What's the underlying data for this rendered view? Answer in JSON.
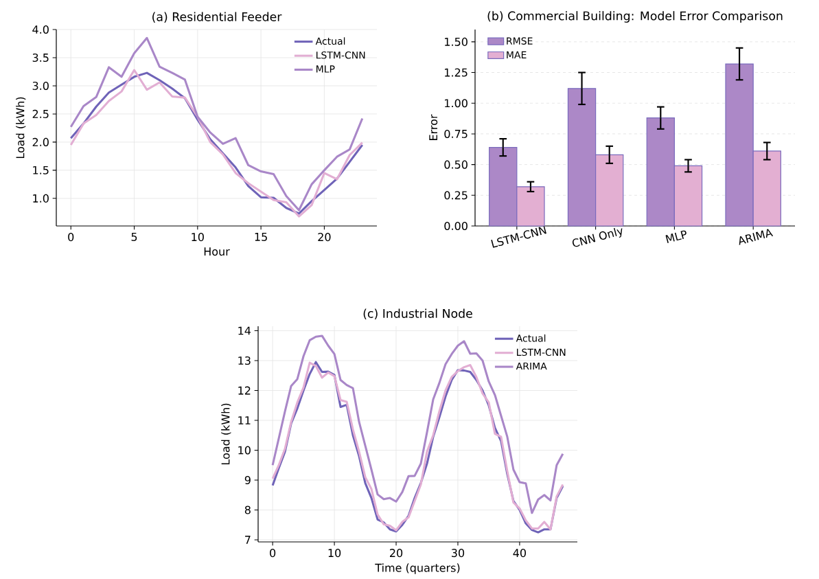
{
  "chart_data": [
    {
      "type": "line",
      "title": "(a) Residential Feeder",
      "xlabel": "Hour",
      "ylabel": "Load (kWh)",
      "x": [
        0,
        1,
        2,
        3,
        4,
        5,
        6,
        7,
        8,
        9,
        10,
        11,
        12,
        13,
        14,
        15,
        16,
        17,
        18,
        19,
        20,
        21,
        22,
        23
      ],
      "series": [
        {
          "name": "Actual",
          "color": "#6f63b8",
          "values": [
            2.07,
            2.33,
            2.63,
            2.88,
            3.02,
            3.16,
            3.23,
            3.1,
            2.95,
            2.78,
            2.4,
            2.05,
            1.8,
            1.55,
            1.22,
            1.02,
            1.01,
            0.83,
            0.73,
            0.95,
            1.15,
            1.35,
            1.65,
            1.95
          ]
        },
        {
          "name": "LSTM-CNN",
          "color": "#e2aed3",
          "values": [
            1.95,
            2.33,
            2.48,
            2.73,
            2.9,
            3.28,
            2.93,
            3.06,
            2.81,
            2.79,
            2.45,
            2.0,
            1.78,
            1.45,
            1.27,
            1.12,
            0.97,
            0.93,
            0.68,
            0.88,
            1.45,
            1.34,
            1.77,
            1.99
          ]
        },
        {
          "name": "MLP",
          "color": "#a987c8",
          "values": [
            2.27,
            2.64,
            2.8,
            3.33,
            3.16,
            3.58,
            3.85,
            3.34,
            3.23,
            3.11,
            2.45,
            2.17,
            1.97,
            2.07,
            1.59,
            1.48,
            1.43,
            1.04,
            0.79,
            1.25,
            1.5,
            1.74,
            1.87,
            2.42
          ]
        }
      ],
      "xlim": [
        -1.15,
        24.15
      ],
      "ylim": [
        0.51,
        4.0
      ],
      "xticks": [
        0,
        5,
        10,
        15,
        20
      ],
      "yticks": [
        {
          "value": 1.0,
          "label": "1.0"
        },
        {
          "value": 1.5,
          "label": "1.5"
        },
        {
          "value": 2.0,
          "label": "2.0"
        },
        {
          "value": 2.5,
          "label": "2.5"
        },
        {
          "value": 3.0,
          "label": "3.0"
        },
        {
          "value": 3.5,
          "label": "3.5"
        },
        {
          "value": 4.0,
          "label": "4.0"
        }
      ],
      "grid": true,
      "legend": "top right"
    },
    {
      "type": "bar",
      "title": "(b) Commercial Building: Model Error Comparison",
      "ylabel": "Error",
      "categories": [
        "LSTM-CNN",
        "CNN Only",
        "MLP",
        "ARIMA"
      ],
      "series": [
        {
          "name": "RMSE",
          "color": "#ac88c7",
          "values": [
            0.64,
            1.12,
            0.88,
            1.32
          ],
          "errors": [
            0.07,
            0.13,
            0.09,
            0.13
          ]
        },
        {
          "name": "MAE",
          "color": "#e3afd2",
          "values": [
            0.32,
            0.58,
            0.49,
            0.61
          ],
          "errors": [
            0.04,
            0.07,
            0.05,
            0.07
          ]
        }
      ],
      "ylim": [
        0,
        1.6
      ],
      "yticks": [
        {
          "value": 0,
          "label": "0.00"
        },
        {
          "value": 0.25,
          "label": "0.25"
        },
        {
          "value": 0.5,
          "label": "0.50"
        },
        {
          "value": 0.75,
          "label": "0.75"
        },
        {
          "value": 1.0,
          "label": "1.00"
        },
        {
          "value": 1.25,
          "label": "1.25"
        },
        {
          "value": 1.5,
          "label": "1.50"
        }
      ],
      "grid": "y",
      "legend": "top left"
    },
    {
      "type": "line",
      "title": "(c) Industrial Node",
      "xlabel": "Time (quarters)",
      "ylabel": "Load (kWh)",
      "x": [
        0,
        1,
        2,
        3,
        4,
        5,
        6,
        7,
        8,
        9,
        10,
        11,
        12,
        13,
        14,
        15,
        16,
        17,
        18,
        19,
        20,
        21,
        22,
        23,
        24,
        25,
        26,
        27,
        28,
        29,
        30,
        31,
        32,
        33,
        34,
        35,
        36,
        37,
        38,
        39,
        40,
        41,
        42,
        43,
        44,
        45,
        46,
        47
      ],
      "series": [
        {
          "name": "Actual",
          "color": "#6f63b8",
          "values": [
            8.82,
            9.4,
            9.95,
            10.9,
            11.4,
            12.0,
            12.55,
            12.95,
            12.62,
            12.63,
            12.52,
            11.45,
            11.52,
            10.5,
            9.8,
            8.9,
            8.4,
            7.68,
            7.58,
            7.35,
            7.28,
            7.5,
            7.8,
            8.4,
            8.9,
            9.55,
            10.45,
            11.1,
            11.8,
            12.35,
            12.68,
            12.67,
            12.62,
            12.35,
            12.0,
            11.5,
            10.75,
            10.3,
            9.2,
            8.3,
            8.0,
            7.55,
            7.33,
            7.25,
            7.35,
            7.35,
            8.4,
            8.8
          ]
        },
        {
          "name": "LSTM-CNN",
          "color": "#e2aed3",
          "values": [
            9.05,
            9.5,
            10.05,
            10.95,
            11.6,
            12.1,
            12.93,
            12.82,
            12.43,
            12.6,
            12.48,
            11.68,
            11.62,
            10.7,
            9.95,
            9.1,
            8.7,
            7.85,
            7.52,
            7.47,
            7.32,
            7.6,
            7.75,
            8.3,
            8.85,
            9.95,
            10.5,
            11.3,
            12.0,
            12.45,
            12.65,
            12.78,
            12.85,
            12.45,
            11.9,
            11.6,
            10.55,
            10.45,
            9.3,
            8.25,
            8.05,
            7.65,
            7.38,
            7.38,
            7.6,
            7.35,
            8.45,
            8.85
          ]
        },
        {
          "name": "ARIMA",
          "color": "#a987c8",
          "values": [
            9.5,
            10.4,
            11.3,
            12.15,
            12.38,
            13.15,
            13.68,
            13.8,
            13.83,
            13.5,
            13.22,
            12.35,
            12.18,
            12.08,
            10.95,
            10.15,
            9.35,
            8.52,
            8.36,
            8.4,
            8.28,
            8.6,
            9.13,
            9.14,
            9.55,
            10.6,
            11.7,
            12.25,
            12.88,
            13.22,
            13.5,
            13.65,
            13.23,
            13.24,
            13.0,
            12.3,
            11.85,
            11.15,
            10.45,
            9.35,
            8.93,
            8.89,
            7.9,
            8.35,
            8.5,
            8.32,
            9.5,
            9.88
          ]
        }
      ],
      "xlim": [
        -2.35,
        49.35
      ],
      "ylim": [
        6.93,
        14.15
      ],
      "xticks": [
        0,
        10,
        20,
        30,
        40
      ],
      "yticks": [
        7,
        8,
        9,
        10,
        11,
        12,
        13,
        14
      ],
      "grid": true,
      "legend": "top right"
    }
  ]
}
